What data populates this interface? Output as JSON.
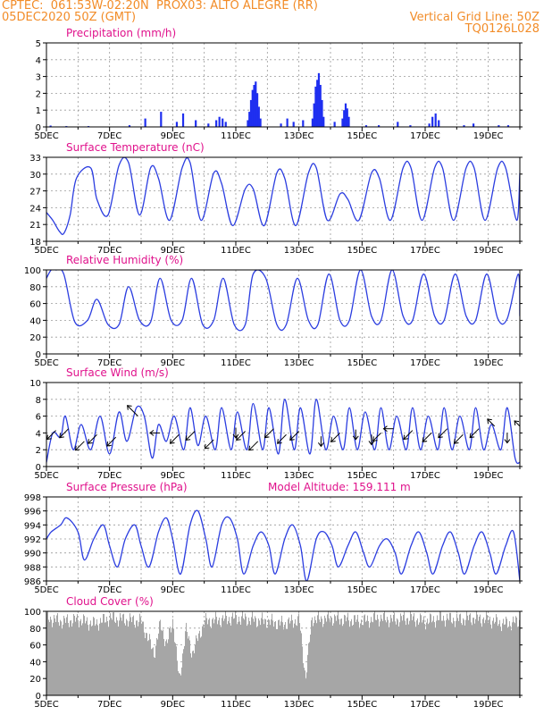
{
  "header": {
    "line1_left": "CPTEC:  061:53W-02:20N  PROX03: ALTO ALEGRE (RR)",
    "line2_left": "05DEC2020 50Z (GMT)",
    "line2_right": "Vertical Grid Line: 50Z",
    "line3_right": "TQ0126L028"
  },
  "colors": {
    "header": "#f28c28",
    "title": "#e0128c",
    "series": "#2b3de0",
    "bars": "#1f2ff0",
    "cloud": "#a6a6a6",
    "arrow": "#000000"
  },
  "chart_data": [
    {
      "id": "precip",
      "type": "bar",
      "title": "Precipitation (mm/h)",
      "ylim": [
        0,
        5
      ],
      "yticks": [
        "0",
        "1",
        "2",
        "3",
        "4",
        "5"
      ],
      "xticks": [
        "5DEC",
        "7DEC",
        "9DEC",
        "11DEC",
        "13DEC",
        "15DEC",
        "17DEC",
        "19DEC"
      ],
      "x_range_days": [
        5,
        20
      ],
      "events": [
        {
          "x": 5.1,
          "v": 0.08
        },
        {
          "x": 5.6,
          "v": 0.05
        },
        {
          "x": 6.3,
          "v": 0.05
        },
        {
          "x": 7.6,
          "v": 0.1
        },
        {
          "x": 8.1,
          "v": 0.5
        },
        {
          "x": 8.6,
          "v": 0.9
        },
        {
          "x": 9.1,
          "v": 0.3
        },
        {
          "x": 9.3,
          "v": 0.8
        },
        {
          "x": 9.7,
          "v": 0.4
        },
        {
          "x": 10.1,
          "v": 0.2
        },
        {
          "x": 10.35,
          "v": 0.4
        },
        {
          "x": 10.45,
          "v": 0.6
        },
        {
          "x": 10.55,
          "v": 0.5
        },
        {
          "x": 10.65,
          "v": 0.3
        },
        {
          "x": 11.35,
          "v": 0.4
        },
        {
          "x": 11.4,
          "v": 0.9
        },
        {
          "x": 11.45,
          "v": 1.6
        },
        {
          "x": 11.5,
          "v": 2.2
        },
        {
          "x": 11.55,
          "v": 2.5
        },
        {
          "x": 11.6,
          "v": 2.7
        },
        {
          "x": 11.65,
          "v": 2.0
        },
        {
          "x": 11.7,
          "v": 1.2
        },
        {
          "x": 11.75,
          "v": 0.5
        },
        {
          "x": 12.4,
          "v": 0.2
        },
        {
          "x": 12.6,
          "v": 0.5
        },
        {
          "x": 12.8,
          "v": 0.3
        },
        {
          "x": 13.1,
          "v": 0.4
        },
        {
          "x": 13.4,
          "v": 0.5
        },
        {
          "x": 13.45,
          "v": 1.4
        },
        {
          "x": 13.5,
          "v": 2.4
        },
        {
          "x": 13.55,
          "v": 2.8
        },
        {
          "x": 13.6,
          "v": 3.2
        },
        {
          "x": 13.65,
          "v": 2.5
        },
        {
          "x": 13.7,
          "v": 1.6
        },
        {
          "x": 13.75,
          "v": 0.6
        },
        {
          "x": 14.1,
          "v": 0.3
        },
        {
          "x": 14.35,
          "v": 0.5
        },
        {
          "x": 14.4,
          "v": 1.0
        },
        {
          "x": 14.45,
          "v": 1.4
        },
        {
          "x": 14.5,
          "v": 1.1
        },
        {
          "x": 14.55,
          "v": 0.6
        },
        {
          "x": 15.1,
          "v": 0.1
        },
        {
          "x": 15.5,
          "v": 0.1
        },
        {
          "x": 16.1,
          "v": 0.3
        },
        {
          "x": 16.5,
          "v": 0.1
        },
        {
          "x": 17.1,
          "v": 0.2
        },
        {
          "x": 17.2,
          "v": 0.6
        },
        {
          "x": 17.3,
          "v": 0.8
        },
        {
          "x": 17.4,
          "v": 0.4
        },
        {
          "x": 18.2,
          "v": 0.1
        },
        {
          "x": 18.5,
          "v": 0.2
        },
        {
          "x": 19.3,
          "v": 0.1
        },
        {
          "x": 19.6,
          "v": 0.1
        }
      ]
    },
    {
      "id": "temp",
      "type": "line",
      "title": "Surface Temperature (nC)",
      "ylim": [
        18,
        34
      ],
      "yticks": [
        "18",
        "21",
        "24",
        "27",
        "30",
        "33"
      ],
      "xticks": [
        "5DEC",
        "7DEC",
        "9DEC",
        "11DEC",
        "13DEC",
        "15DEC",
        "17DEC",
        "19DEC"
      ],
      "x_range_days": [
        5,
        20
      ],
      "x": [
        5.0,
        5.2,
        5.4,
        5.55,
        5.75,
        5.95,
        6.4,
        6.6,
        6.95,
        7.3,
        7.6,
        7.95,
        8.3,
        8.55,
        8.9,
        9.3,
        9.55,
        9.9,
        10.3,
        10.55,
        10.9,
        11.3,
        11.55,
        11.9,
        12.3,
        12.55,
        12.9,
        13.3,
        13.55,
        13.9,
        14.3,
        14.55,
        14.9,
        15.3,
        15.55,
        15.9,
        16.3,
        16.55,
        16.9,
        17.3,
        17.55,
        17.9,
        18.3,
        18.55,
        18.9,
        19.3,
        19.55,
        19.9,
        20.0
      ],
      "values": [
        23.5,
        22,
        20,
        19.5,
        23,
        30,
        32,
        26,
        23,
        32.5,
        33,
        23,
        32,
        30,
        22,
        32,
        33,
        22,
        31,
        29,
        21,
        28,
        28,
        21,
        31,
        30,
        21,
        31,
        32,
        22,
        27,
        26,
        22,
        31,
        30,
        22,
        32,
        32,
        22,
        32,
        32,
        22,
        32,
        32,
        22,
        32,
        32,
        22,
        31
      ]
    },
    {
      "id": "rh",
      "type": "line",
      "title": "Relative Humidity (%)",
      "ylim": [
        0,
        100
      ],
      "yticks": [
        "0",
        "20",
        "40",
        "60",
        "80",
        "100"
      ],
      "xticks": [
        "5DEC",
        "7DEC",
        "9DEC",
        "11DEC",
        "13DEC",
        "15DEC",
        "17DEC",
        "19DEC"
      ],
      "x_range_days": [
        5,
        20
      ],
      "x": [
        5.0,
        5.15,
        5.3,
        5.55,
        5.9,
        6.3,
        6.6,
        6.95,
        7.3,
        7.6,
        7.95,
        8.3,
        8.6,
        8.95,
        9.3,
        9.6,
        9.95,
        10.3,
        10.6,
        10.95,
        11.3,
        11.55,
        11.95,
        12.3,
        12.6,
        12.95,
        13.3,
        13.6,
        13.95,
        14.3,
        14.6,
        14.95,
        15.3,
        15.6,
        15.95,
        16.3,
        16.6,
        16.95,
        17.3,
        17.6,
        17.95,
        18.3,
        18.6,
        18.95,
        19.3,
        19.6,
        19.95,
        20.0
      ],
      "values": [
        90,
        100,
        100,
        95,
        38,
        40,
        65,
        35,
        35,
        80,
        40,
        38,
        90,
        40,
        40,
        90,
        35,
        40,
        90,
        35,
        35,
        95,
        90,
        35,
        35,
        90,
        40,
        35,
        95,
        40,
        40,
        100,
        45,
        40,
        100,
        45,
        40,
        95,
        45,
        40,
        95,
        45,
        40,
        95,
        42,
        42,
        95,
        45
      ]
    },
    {
      "id": "wind",
      "type": "line",
      "title": "Surface Wind (m/s)",
      "ylim": [
        0,
        10
      ],
      "yticks": [
        "0",
        "2",
        "4",
        "6",
        "8",
        "10"
      ],
      "xticks": [
        "5DEC",
        "7DEC",
        "9DEC",
        "11DEC",
        "13DEC",
        "15DEC",
        "17DEC",
        "19DEC"
      ],
      "x_range_days": [
        5,
        20
      ],
      "x": [
        5.0,
        5.2,
        5.45,
        5.6,
        5.85,
        6.1,
        6.4,
        6.7,
        7.0,
        7.3,
        7.55,
        7.85,
        8.1,
        8.35,
        8.55,
        8.8,
        9.05,
        9.35,
        9.55,
        9.8,
        10.05,
        10.35,
        10.55,
        10.85,
        11.05,
        11.35,
        11.55,
        11.85,
        12.05,
        12.35,
        12.55,
        12.85,
        13.05,
        13.35,
        13.55,
        13.85,
        14.1,
        14.4,
        14.6,
        14.85,
        15.1,
        15.4,
        15.6,
        15.85,
        16.1,
        16.4,
        16.6,
        16.85,
        17.1,
        17.4,
        17.6,
        17.85,
        18.1,
        18.4,
        18.6,
        18.85,
        19.1,
        19.4,
        19.6,
        19.85,
        20.0
      ],
      "values": [
        0.5,
        4,
        3.5,
        6,
        2,
        5,
        2,
        6,
        1.5,
        6.5,
        3,
        7,
        6,
        1,
        5,
        3,
        6,
        2,
        7,
        2.5,
        6,
        2,
        7,
        2,
        6.5,
        2,
        7.5,
        2,
        7,
        1.5,
        8,
        2,
        7,
        1.5,
        8,
        2,
        6,
        2,
        7,
        2,
        6.5,
        2,
        7,
        2,
        6,
        2,
        7,
        2,
        6,
        2,
        7,
        2,
        6,
        2,
        7,
        2,
        5,
        2,
        7,
        1,
        0.5
      ],
      "barbs": [
        {
          "x": 5.3,
          "v": 4.3,
          "dir": "sw",
          "len": 1
        },
        {
          "x": 5.7,
          "v": 4.5,
          "dir": "sw",
          "len": 1
        },
        {
          "x": 6.2,
          "v": 3.0,
          "dir": "sw",
          "len": 1
        },
        {
          "x": 6.6,
          "v": 3.8,
          "dir": "sw",
          "len": 1
        },
        {
          "x": 7.2,
          "v": 3.5,
          "dir": "sw",
          "len": 1
        },
        {
          "x": 7.9,
          "v": 6.0,
          "dir": "nw",
          "len": 1.2
        },
        {
          "x": 8.6,
          "v": 4.0,
          "dir": "w",
          "len": 0.8
        },
        {
          "x": 9.2,
          "v": 3.8,
          "dir": "sw",
          "len": 1
        },
        {
          "x": 9.7,
          "v": 4.2,
          "dir": "sw",
          "len": 1
        },
        {
          "x": 10.3,
          "v": 3.2,
          "dir": "sw",
          "len": 1
        },
        {
          "x": 11.0,
          "v": 4.6,
          "dir": "s",
          "len": 0.8
        },
        {
          "x": 11.3,
          "v": 4.2,
          "dir": "sw",
          "len": 1
        },
        {
          "x": 11.7,
          "v": 3.0,
          "dir": "sw",
          "len": 1
        },
        {
          "x": 12.2,
          "v": 4.5,
          "dir": "sw",
          "len": 1
        },
        {
          "x": 12.6,
          "v": 3.8,
          "dir": "sw",
          "len": 1
        },
        {
          "x": 13.0,
          "v": 4.2,
          "dir": "sw",
          "len": 1
        },
        {
          "x": 13.7,
          "v": 3.6,
          "dir": "s",
          "len": 0.8
        },
        {
          "x": 14.3,
          "v": 4.0,
          "dir": "sw",
          "len": 1
        },
        {
          "x": 14.8,
          "v": 4.4,
          "dir": "s",
          "len": 0.8
        },
        {
          "x": 15.3,
          "v": 3.8,
          "dir": "s",
          "len": 0.8
        },
        {
          "x": 15.6,
          "v": 4.0,
          "dir": "sw",
          "len": 0.9
        },
        {
          "x": 16.0,
          "v": 4.5,
          "dir": "w",
          "len": 0.8
        },
        {
          "x": 16.6,
          "v": 4.3,
          "dir": "sw",
          "len": 1
        },
        {
          "x": 17.2,
          "v": 4.0,
          "dir": "sw",
          "len": 1
        },
        {
          "x": 17.7,
          "v": 4.5,
          "dir": "sw",
          "len": 1
        },
        {
          "x": 18.2,
          "v": 3.8,
          "dir": "sw",
          "len": 1
        },
        {
          "x": 18.7,
          "v": 4.5,
          "dir": "sw",
          "len": 1
        },
        {
          "x": 19.2,
          "v": 4.8,
          "dir": "nw",
          "len": 0.8
        },
        {
          "x": 19.6,
          "v": 4.0,
          "dir": "s",
          "len": 0.8
        },
        {
          "x": 20.0,
          "v": 4.8,
          "dir": "nw",
          "len": 0.6
        }
      ]
    },
    {
      "id": "pres",
      "type": "line",
      "title": "Surface Pressure (hPa)",
      "annotation": "Model Altitude: 159.111  m",
      "ylim": [
        986,
        998
      ],
      "yticks": [
        "986",
        "988",
        "990",
        "992",
        "994",
        "996",
        "998"
      ],
      "xticks": [
        "5DEC",
        "7DEC",
        "9DEC",
        "11DEC",
        "13DEC",
        "15DEC",
        "17DEC",
        "19DEC"
      ],
      "x_range_days": [
        5,
        20
      ],
      "x": [
        5.0,
        5.15,
        5.45,
        5.65,
        6.0,
        6.2,
        6.5,
        6.8,
        7.0,
        7.25,
        7.5,
        7.8,
        8.0,
        8.25,
        8.55,
        8.8,
        9.0,
        9.25,
        9.55,
        9.8,
        10.05,
        10.25,
        10.55,
        10.8,
        11.05,
        11.25,
        11.55,
        11.8,
        12.05,
        12.25,
        12.55,
        12.8,
        13.05,
        13.25,
        13.55,
        13.8,
        14.05,
        14.25,
        14.55,
        14.8,
        15.05,
        15.25,
        15.55,
        15.8,
        16.05,
        16.25,
        16.55,
        16.8,
        17.05,
        17.25,
        17.55,
        17.8,
        18.05,
        18.25,
        18.55,
        18.8,
        19.05,
        19.25,
        19.55,
        19.8,
        20.0
      ],
      "values": [
        992,
        993,
        994,
        995,
        993,
        989,
        992,
        994,
        991,
        988,
        992,
        994,
        991,
        988,
        993,
        995,
        992,
        987,
        994,
        996,
        992,
        988,
        994,
        995,
        992,
        987,
        991,
        993,
        991,
        987,
        992,
        994,
        991,
        986,
        992,
        993,
        991,
        988,
        991,
        993,
        990,
        988,
        991,
        992,
        990,
        987,
        991,
        993,
        990,
        987,
        991,
        993,
        990,
        987,
        991,
        993,
        990,
        987,
        991,
        993,
        986
      ]
    },
    {
      "id": "cloud",
      "type": "bar",
      "title": "Cloud Cover (%)",
      "ylim": [
        0,
        100
      ],
      "yticks": [
        "0",
        "20",
        "40",
        "60",
        "80",
        "100"
      ],
      "xticks": [
        "5DEC",
        "7DEC",
        "9DEC",
        "11DEC",
        "13DEC",
        "15DEC",
        "17DEC",
        "19DEC"
      ],
      "x_range_days": [
        5,
        20
      ],
      "x": [
        5.0,
        5.5,
        6.0,
        6.5,
        7.0,
        7.5,
        8.0,
        8.4,
        8.6,
        8.8,
        9.0,
        9.2,
        9.4,
        9.6,
        10.0,
        10.5,
        11.0,
        11.5,
        12.0,
        12.5,
        13.0,
        13.2,
        13.4,
        13.6,
        14.0,
        14.5,
        15.0,
        15.5,
        16.0,
        16.5,
        17.0,
        17.5,
        18.0,
        18.5,
        19.0,
        19.5,
        20.0
      ],
      "values": [
        92,
        88,
        90,
        85,
        92,
        90,
        88,
        50,
        85,
        60,
        90,
        15,
        80,
        50,
        88,
        90,
        92,
        90,
        88,
        85,
        90,
        20,
        92,
        90,
        92,
        90,
        88,
        92,
        90,
        92,
        88,
        92,
        90,
        92,
        90,
        85,
        88
      ]
    }
  ]
}
